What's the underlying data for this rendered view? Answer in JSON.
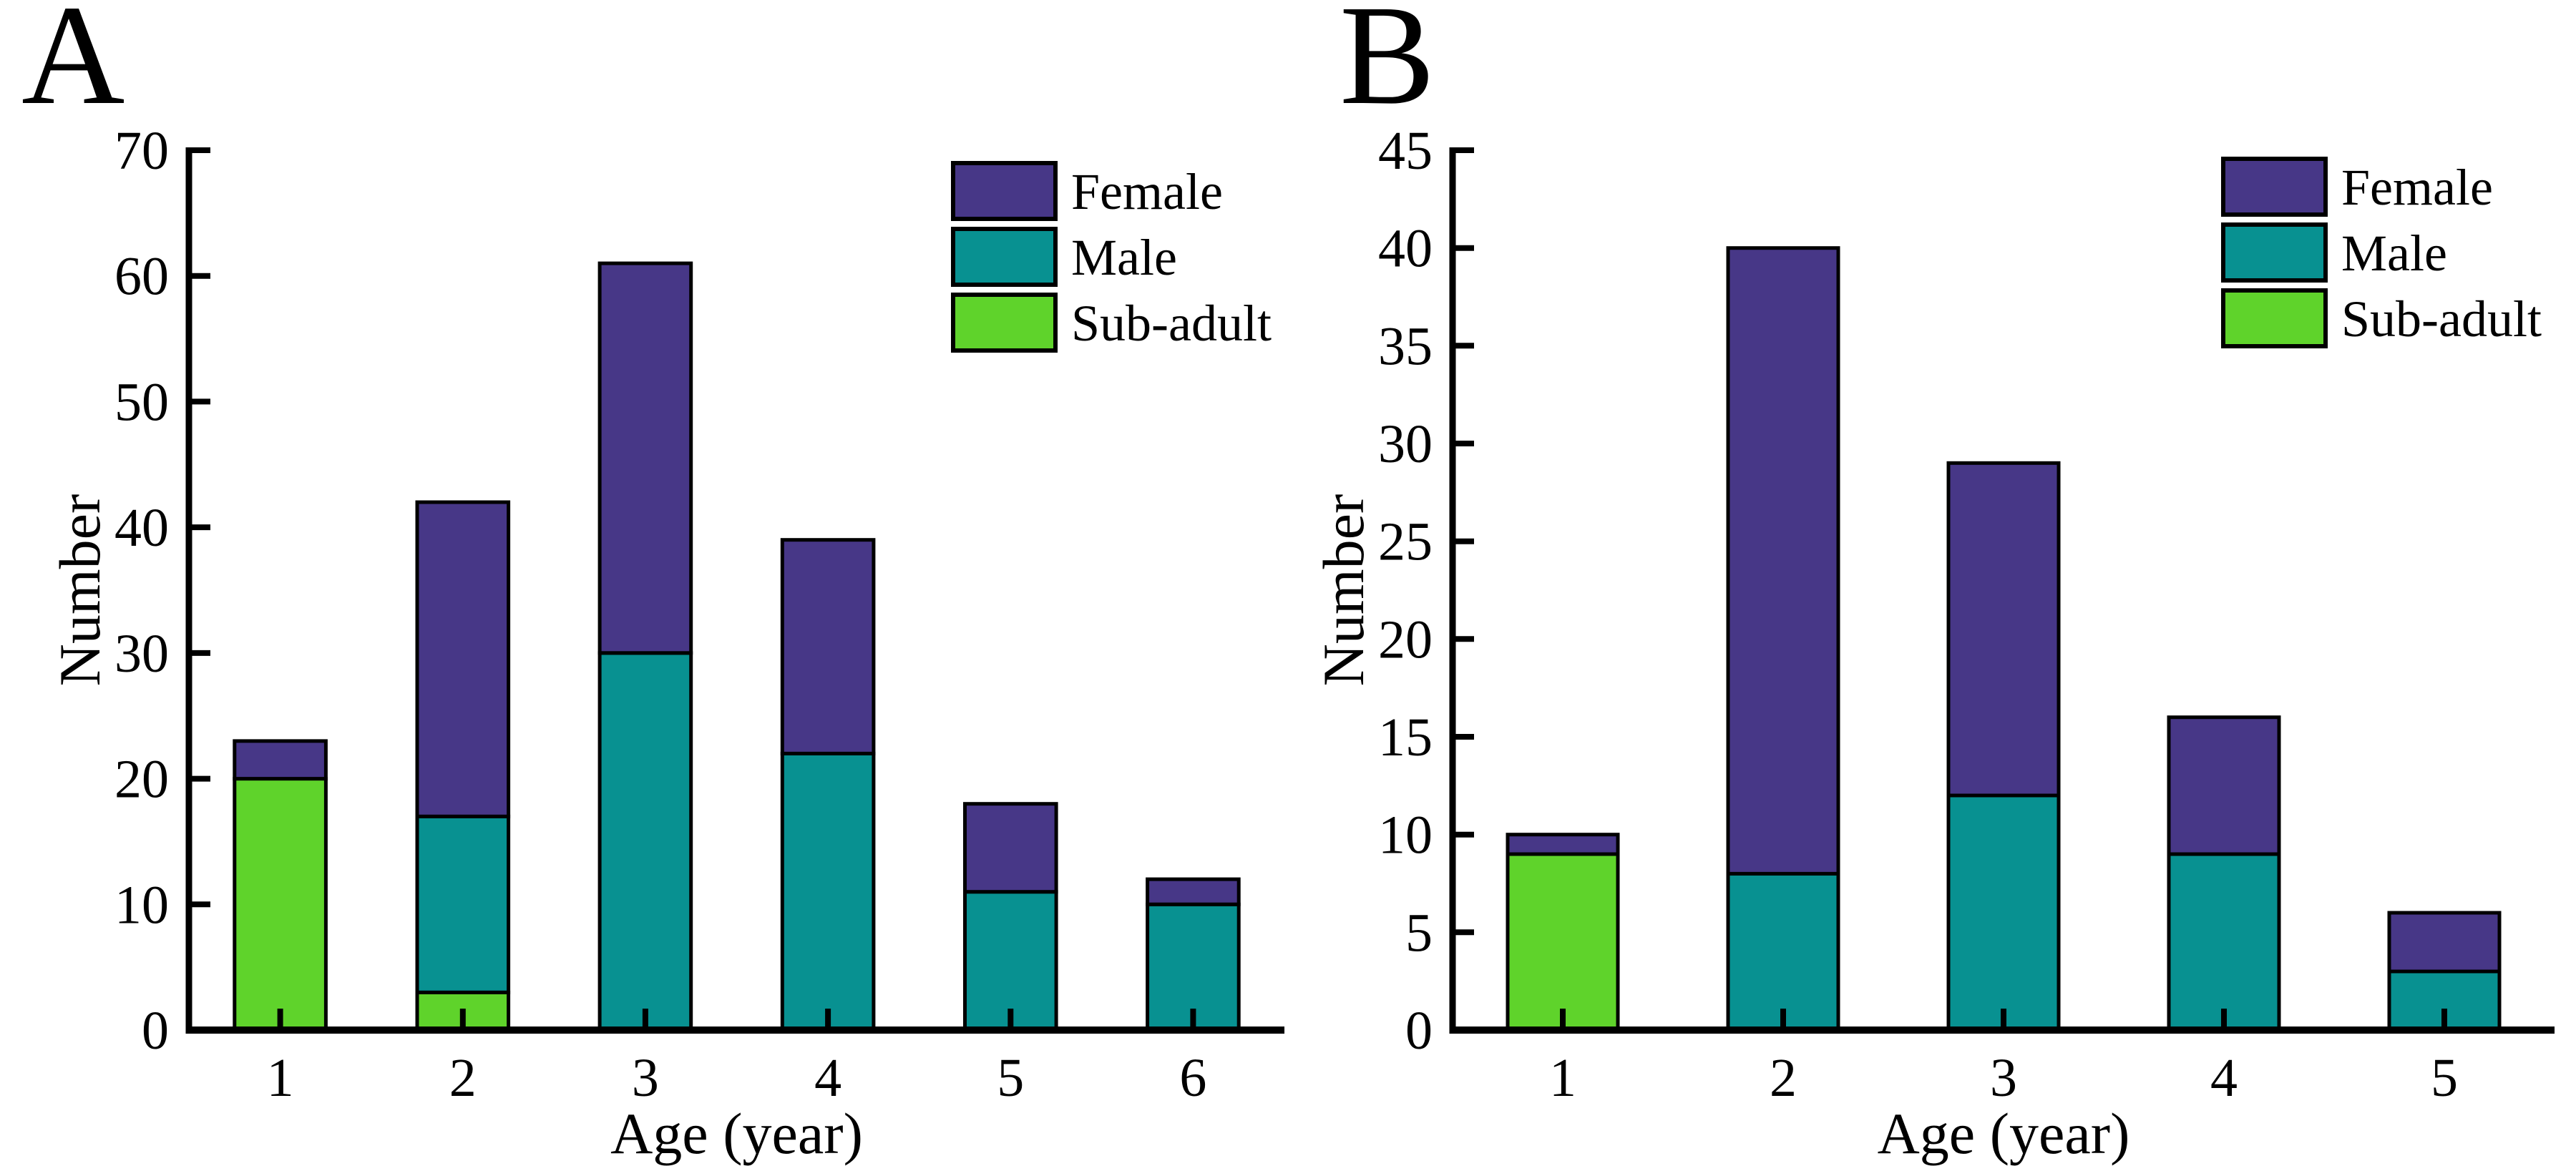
{
  "page": {
    "background": "#ffffff"
  },
  "panels": [
    {
      "label": "A",
      "ylabel": "Number",
      "xlabel": "Age (year)"
    },
    {
      "label": "B",
      "ylabel": "Number",
      "xlabel": "Age (year)"
    }
  ],
  "colors": {
    "female": "#473787",
    "male": "#089191",
    "sub_adult": "#5fd32b",
    "axis": "#000000",
    "bar_outline": "#000000"
  },
  "chart_data": [
    {
      "type": "bar",
      "stacked": true,
      "panel": "A",
      "categories": [
        "1",
        "2",
        "3",
        "4",
        "5",
        "6"
      ],
      "series": [
        {
          "name": "Sub-adult",
          "color_key": "sub_adult",
          "values": [
            20,
            3,
            0,
            0,
            0,
            0
          ]
        },
        {
          "name": "Male",
          "color_key": "male",
          "values": [
            0,
            14,
            30,
            22,
            11,
            10
          ]
        },
        {
          "name": "Female",
          "color_key": "female",
          "values": [
            3,
            25,
            31,
            17,
            7,
            2
          ]
        }
      ],
      "totals": [
        23,
        42,
        61,
        39,
        18,
        12
      ],
      "xlabel": "Age (year)",
      "ylabel": "Number",
      "ylim": [
        0,
        70
      ],
      "yticks": [
        0,
        10,
        20,
        30,
        40,
        50,
        60,
        70
      ],
      "legend": [
        "Female",
        "Male",
        "Sub-adult"
      ],
      "legend_position": "top-right",
      "grid": false
    },
    {
      "type": "bar",
      "stacked": true,
      "panel": "B",
      "categories": [
        "1",
        "2",
        "3",
        "4",
        "5"
      ],
      "series": [
        {
          "name": "Sub-adult",
          "color_key": "sub_adult",
          "values": [
            9,
            0,
            0,
            0,
            0
          ]
        },
        {
          "name": "Male",
          "color_key": "male",
          "values": [
            0,
            8,
            12,
            9,
            3
          ]
        },
        {
          "name": "Female",
          "color_key": "female",
          "values": [
            1,
            32,
            17,
            7,
            3
          ]
        }
      ],
      "totals": [
        10,
        40,
        29,
        16,
        6
      ],
      "xlabel": "Age (year)",
      "ylabel": "Number",
      "ylim": [
        0,
        45
      ],
      "yticks": [
        0,
        5,
        10,
        15,
        20,
        25,
        30,
        35,
        40,
        45
      ],
      "legend": [
        "Female",
        "Male",
        "Sub-adult"
      ],
      "legend_position": "top-right",
      "grid": false
    }
  ]
}
